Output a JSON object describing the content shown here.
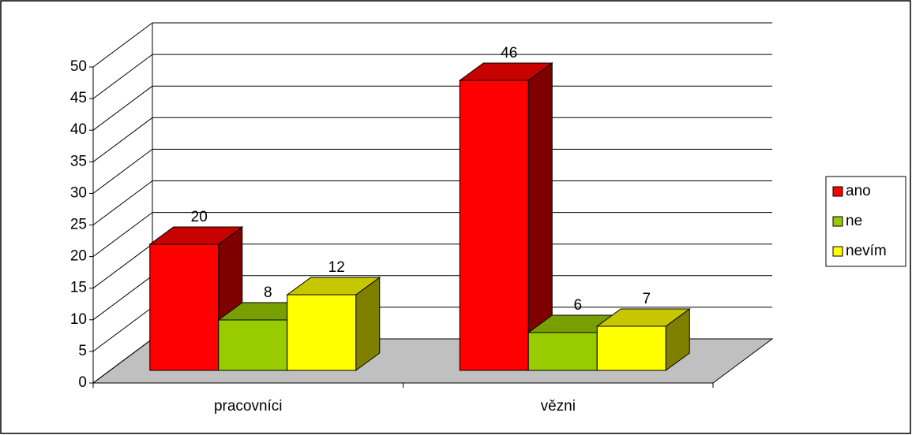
{
  "chart_data": {
    "type": "bar3d",
    "categories": [
      "pracovníci",
      "vězni"
    ],
    "series": [
      {
        "name": "ano",
        "color": "#ff0000",
        "values": [
          20,
          46
        ]
      },
      {
        "name": "ne",
        "color": "#99cc00",
        "values": [
          8,
          6
        ]
      },
      {
        "name": "nevím",
        "color": "#ffff00",
        "values": [
          12,
          7
        ]
      }
    ],
    "ylim": [
      0,
      50
    ],
    "yticks": [
      0,
      5,
      10,
      15,
      20,
      25,
      30,
      35,
      40,
      45,
      50
    ],
    "grid": true,
    "legend": "right"
  }
}
